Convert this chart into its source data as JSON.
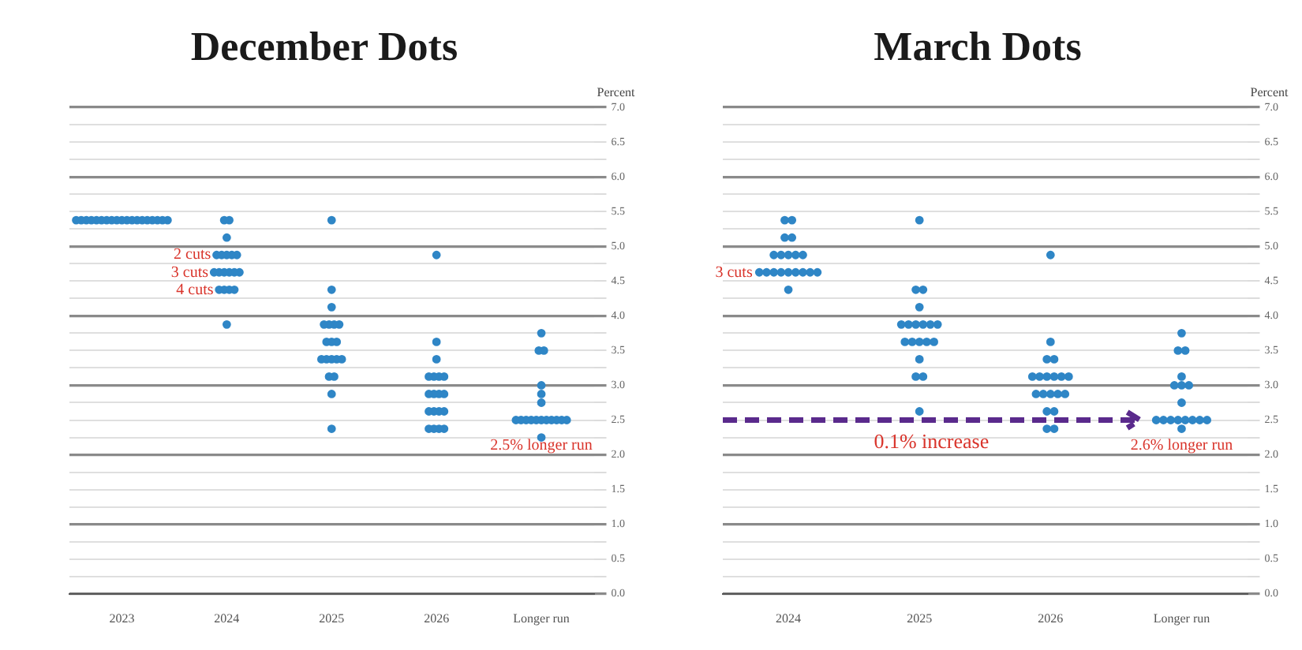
{
  "chart_data": [
    {
      "type": "scatter",
      "title": "December Dots",
      "ylabel": "Percent",
      "categories": [
        "2023",
        "2024",
        "2025",
        "2026",
        "Longer run"
      ],
      "series": [
        {
          "color": "#2f86c6",
          "values": [
            5.375,
            5.375,
            5.375,
            4.875,
            3.75
          ]
        },
        {
          "color": "#2f86c6",
          "values": [
            5.375,
            5.375,
            4.375,
            3.625,
            3.5
          ]
        },
        {
          "color": "#2f86c6",
          "values": [
            5.375,
            5.125,
            4.125,
            3.375,
            3.5
          ]
        },
        {
          "color": "#2f86c6",
          "values": [
            5.375,
            4.875,
            3.875,
            3.125,
            3.0
          ]
        },
        {
          "color": "#2f86c6",
          "values": [
            5.375,
            4.875,
            3.875,
            3.125,
            2.875
          ]
        },
        {
          "color": "#2f86c6",
          "values": [
            5.375,
            4.875,
            3.875,
            3.125,
            2.75
          ]
        },
        {
          "color": "#2f86c6",
          "values": [
            5.375,
            4.875,
            3.875,
            3.125,
            2.5
          ]
        },
        {
          "color": "#2f86c6",
          "values": [
            5.375,
            4.875,
            3.625,
            2.875,
            2.5
          ]
        },
        {
          "color": "#2f86c6",
          "values": [
            5.375,
            4.625,
            3.625,
            2.875,
            2.5
          ]
        },
        {
          "color": "#2f86c6",
          "values": [
            5.375,
            4.625,
            3.625,
            2.875,
            2.5
          ]
        },
        {
          "color": "#2f86c6",
          "values": [
            5.375,
            4.625,
            3.375,
            2.875,
            2.5
          ]
        },
        {
          "color": "#2f86c6",
          "values": [
            5.375,
            4.625,
            3.375,
            2.625,
            2.5
          ]
        },
        {
          "color": "#2f86c6",
          "values": [
            5.375,
            4.625,
            3.375,
            2.625,
            2.5
          ]
        },
        {
          "color": "#2f86c6",
          "values": [
            5.375,
            4.625,
            3.375,
            2.625,
            2.5
          ]
        },
        {
          "color": "#2f86c6",
          "values": [
            5.375,
            4.375,
            3.375,
            2.625,
            2.5
          ]
        },
        {
          "color": "#2f86c6",
          "values": [
            5.375,
            4.375,
            3.125,
            2.375,
            2.5
          ]
        },
        {
          "color": "#2f86c6",
          "values": [
            5.375,
            4.375,
            3.125,
            2.375,
            2.5
          ]
        },
        {
          "color": "#2f86c6",
          "values": [
            5.375,
            4.375,
            2.875,
            2.375,
            2.25
          ]
        },
        {
          "color": "#2f86c6",
          "values": [
            5.375,
            3.875,
            2.375,
            2.375,
            null
          ]
        }
      ],
      "ylim": [
        0,
        7
      ],
      "yticks": [
        {
          "value": 0,
          "label": "0.0"
        },
        {
          "value": 0.25,
          "label": null
        },
        {
          "value": 0.5,
          "label": "0.5"
        },
        {
          "value": 0.75,
          "label": null
        },
        {
          "value": 1,
          "label": "1.0"
        },
        {
          "value": 1.25,
          "label": null
        },
        {
          "value": 1.5,
          "label": "1.5"
        },
        {
          "value": 1.75,
          "label": null
        },
        {
          "value": 2,
          "label": "2.0"
        },
        {
          "value": 2.25,
          "label": null
        },
        {
          "value": 2.5,
          "label": "2.5"
        },
        {
          "value": 2.75,
          "label": null
        },
        {
          "value": 3,
          "label": "3.0"
        },
        {
          "value": 3.25,
          "label": null
        },
        {
          "value": 3.5,
          "label": "3.5"
        },
        {
          "value": 3.75,
          "label": null
        },
        {
          "value": 4,
          "label": "4.0"
        },
        {
          "value": 4.25,
          "label": null
        },
        {
          "value": 4.5,
          "label": "4.5"
        },
        {
          "value": 4.75,
          "label": null
        },
        {
          "value": 5,
          "label": "5.0"
        },
        {
          "value": 5.25,
          "label": null
        },
        {
          "value": 5.5,
          "label": "5.5"
        },
        {
          "value": 5.75,
          "label": null
        },
        {
          "value": 6,
          "label": "6.0"
        },
        {
          "value": 6.25,
          "label": null
        },
        {
          "value": 6.5,
          "label": "6.5"
        },
        {
          "value": 6.75,
          "label": null
        },
        {
          "value": 7,
          "label": "7.0"
        }
      ],
      "grid": "y",
      "marker": "circle",
      "annotations": [
        {
          "text": "2 cuts",
          "x": "2024",
          "y": 4.875
        },
        {
          "text": "3 cuts",
          "x": "2024",
          "y": 4.625
        },
        {
          "text": "4 cuts",
          "x": "2024",
          "y": 4.375
        },
        {
          "text": "2.5% longer run",
          "x": "Longer run",
          "y": 2.5
        }
      ]
    },
    {
      "type": "scatter",
      "title": "March Dots",
      "ylabel": "Percent",
      "categories": [
        "2024",
        "2025",
        "2026",
        "Longer run"
      ],
      "series": [
        {
          "color": "#2f86c6",
          "values": [
            5.375,
            5.375,
            4.875,
            3.75
          ]
        },
        {
          "color": "#2f86c6",
          "values": [
            5.375,
            4.375,
            3.625,
            3.5
          ]
        },
        {
          "color": "#2f86c6",
          "values": [
            5.125,
            4.375,
            3.375,
            3.5
          ]
        },
        {
          "color": "#2f86c6",
          "values": [
            5.125,
            4.125,
            3.375,
            3.125
          ]
        },
        {
          "color": "#2f86c6",
          "values": [
            4.875,
            3.875,
            3.125,
            3.0
          ]
        },
        {
          "color": "#2f86c6",
          "values": [
            4.875,
            3.875,
            3.125,
            3.0
          ]
        },
        {
          "color": "#2f86c6",
          "values": [
            4.875,
            3.875,
            3.125,
            3.0
          ]
        },
        {
          "color": "#2f86c6",
          "values": [
            4.875,
            3.875,
            3.125,
            2.75
          ]
        },
        {
          "color": "#2f86c6",
          "values": [
            4.875,
            3.875,
            3.125,
            2.5
          ]
        },
        {
          "color": "#2f86c6",
          "values": [
            4.625,
            3.875,
            3.125,
            2.5
          ]
        },
        {
          "color": "#2f86c6",
          "values": [
            4.625,
            3.625,
            2.875,
            2.5
          ]
        },
        {
          "color": "#2f86c6",
          "values": [
            4.625,
            3.625,
            2.875,
            2.5
          ]
        },
        {
          "color": "#2f86c6",
          "values": [
            4.625,
            3.625,
            2.875,
            2.5
          ]
        },
        {
          "color": "#2f86c6",
          "values": [
            4.625,
            3.625,
            2.875,
            2.5
          ]
        },
        {
          "color": "#2f86c6",
          "values": [
            4.625,
            3.625,
            2.875,
            2.5
          ]
        },
        {
          "color": "#2f86c6",
          "values": [
            4.625,
            3.375,
            2.625,
            2.5
          ]
        },
        {
          "color": "#2f86c6",
          "values": [
            4.625,
            3.125,
            2.625,
            2.375
          ]
        },
        {
          "color": "#2f86c6",
          "values": [
            4.625,
            3.125,
            2.375,
            null
          ]
        },
        {
          "color": "#2f86c6",
          "values": [
            4.375,
            2.625,
            2.375,
            null
          ]
        }
      ],
      "ylim": [
        0,
        7
      ],
      "yticks": [
        {
          "value": 0,
          "label": "0.0"
        },
        {
          "value": 0.25,
          "label": null
        },
        {
          "value": 0.5,
          "label": "0.5"
        },
        {
          "value": 0.75,
          "label": null
        },
        {
          "value": 1,
          "label": "1.0"
        },
        {
          "value": 1.25,
          "label": null
        },
        {
          "value": 1.5,
          "label": "1.5"
        },
        {
          "value": 1.75,
          "label": null
        },
        {
          "value": 2,
          "label": "2.0"
        },
        {
          "value": 2.25,
          "label": null
        },
        {
          "value": 2.5,
          "label": "2.5"
        },
        {
          "value": 2.75,
          "label": null
        },
        {
          "value": 3,
          "label": "3.0"
        },
        {
          "value": 3.25,
          "label": null
        },
        {
          "value": 3.5,
          "label": "3.5"
        },
        {
          "value": 3.75,
          "label": null
        },
        {
          "value": 4,
          "label": "4.0"
        },
        {
          "value": 4.25,
          "label": null
        },
        {
          "value": 4.5,
          "label": "4.5"
        },
        {
          "value": 4.75,
          "label": null
        },
        {
          "value": 5,
          "label": "5.0"
        },
        {
          "value": 5.25,
          "label": null
        },
        {
          "value": 5.5,
          "label": "5.5"
        },
        {
          "value": 5.75,
          "label": null
        },
        {
          "value": 6,
          "label": "6.0"
        },
        {
          "value": 6.25,
          "label": null
        },
        {
          "value": 6.5,
          "label": "6.5"
        },
        {
          "value": 6.75,
          "label": null
        },
        {
          "value": 7,
          "label": "7.0"
        }
      ],
      "grid": "y",
      "marker": "circle",
      "ref_lines": [
        {
          "axis": "y",
          "value": 2.5,
          "label": "0.1% increase",
          "color": "#5a2a8c",
          "line_style": "dashed"
        }
      ],
      "annotations": [
        {
          "text": "3 cuts",
          "x": "2024",
          "y": 4.625
        },
        {
          "text": "2.6% longer run",
          "x": "Longer run",
          "y": 2.5
        }
      ]
    }
  ]
}
